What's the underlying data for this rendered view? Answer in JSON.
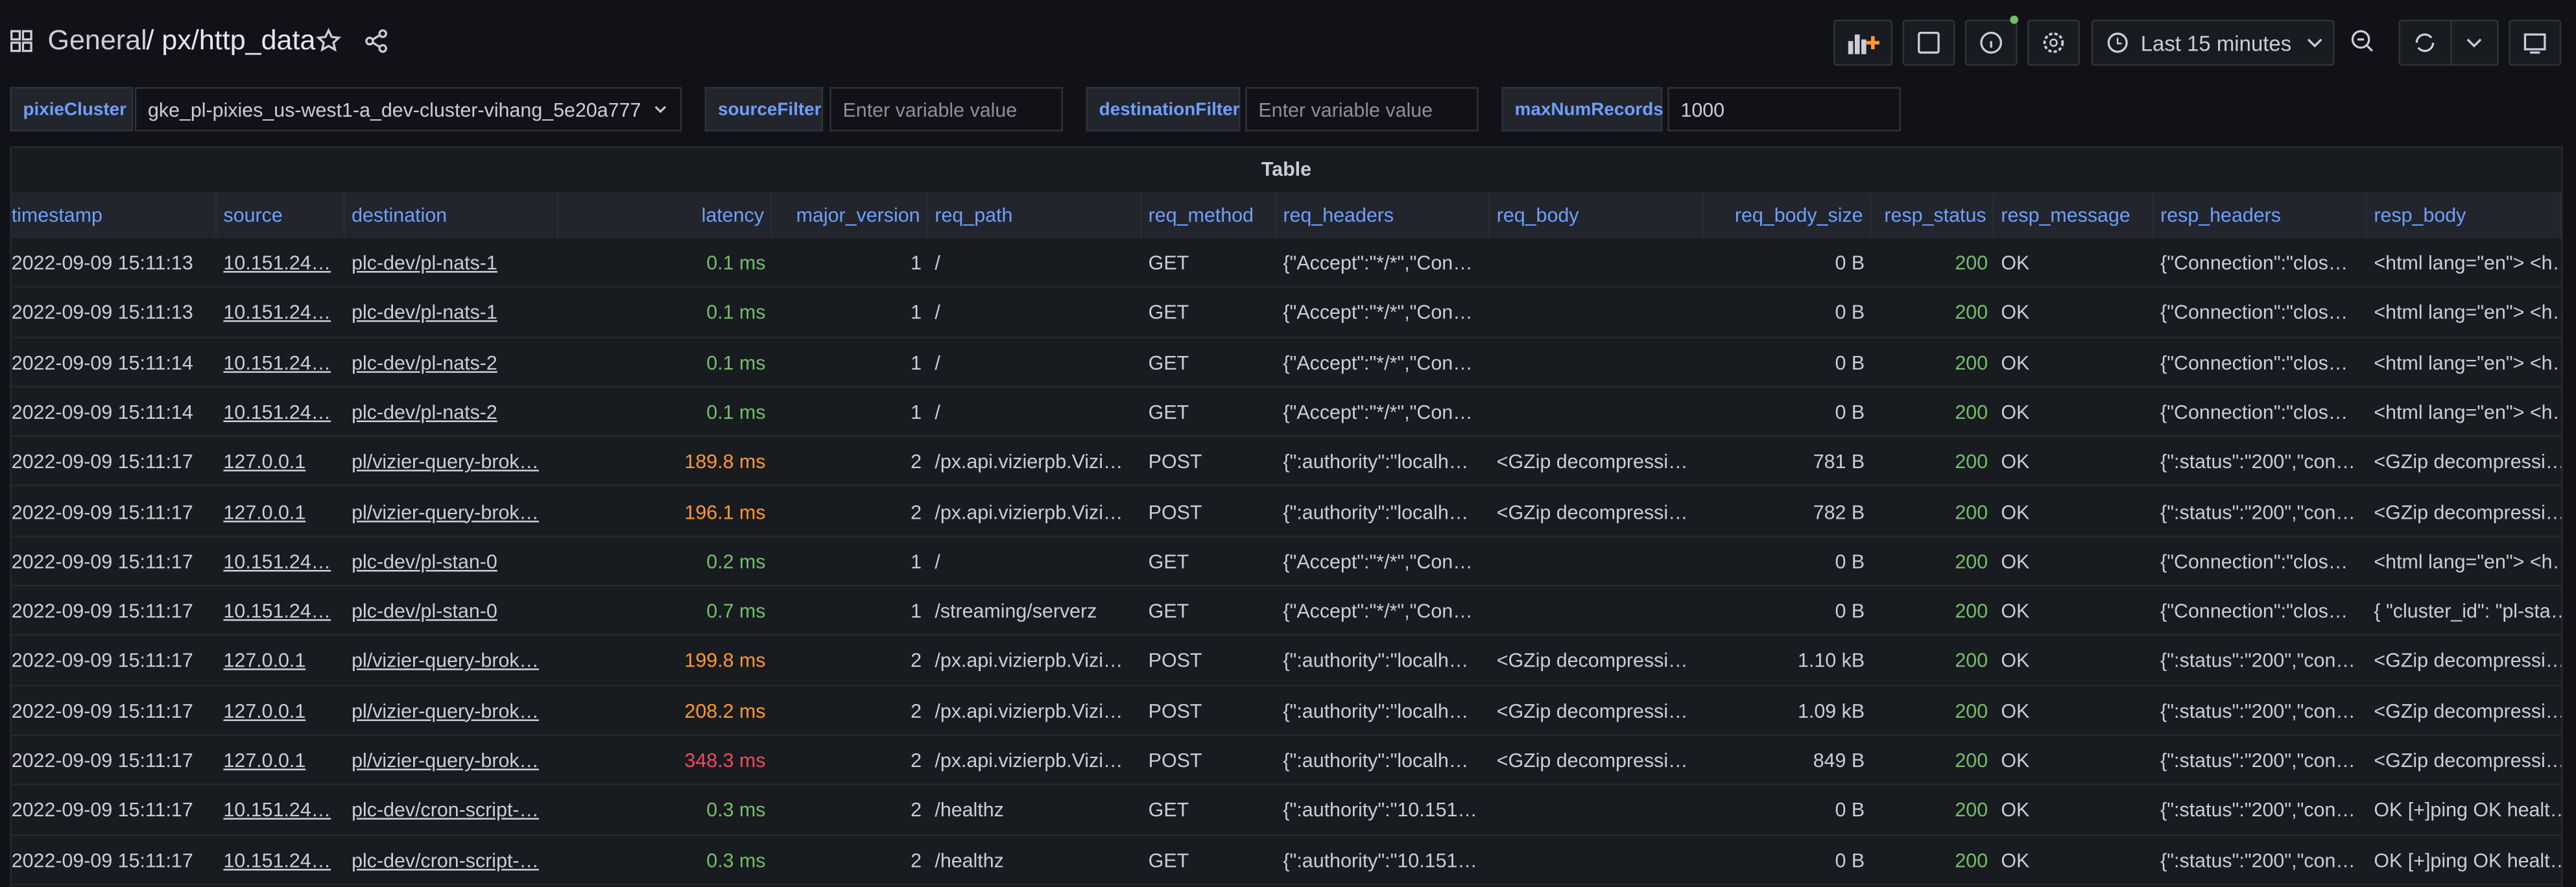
{
  "header": {
    "breadcrumb": "General",
    "title": "/ px/http_data",
    "time_range": "Last 15 minutes"
  },
  "variables": [
    {
      "label": "pixieCluster",
      "value": "gke_pl-pixies_us-west1-a_dev-cluster-vihang_5e20a777"
    },
    {
      "label": "sourceFilter",
      "placeholder": "Enter variable value"
    },
    {
      "label": "destinationFilter",
      "placeholder": "Enter variable value"
    },
    {
      "label": "maxNumRecords",
      "value": "1000"
    }
  ],
  "table": {
    "title": "Table",
    "columns": [
      "timestamp",
      "source",
      "destination",
      "latency",
      "major_version",
      "req_path",
      "req_method",
      "req_headers",
      "req_body",
      "req_body_size",
      "resp_status",
      "resp_message",
      "resp_headers",
      "resp_body"
    ],
    "latency_colors": [
      "#73bf69",
      "#73bf69",
      "#73bf69",
      "#73bf69",
      "#ff9830",
      "#ff9830",
      "#73bf69",
      "#73bf69",
      "#ff9830",
      "#ff9830",
      "#f2495c",
      "#73bf69",
      "#73bf69"
    ],
    "status_color": "#73bf69",
    "rows": [
      [
        "2022-09-09 15:11:13",
        "10.151.24…",
        "plc-dev/pl-nats-1",
        "0.1 ms",
        "1",
        "/",
        "GET",
        "{\"Accept\":\"*/*\",\"Con…",
        null,
        "0 B",
        "200",
        "OK",
        "{\"Connection\":\"clos…",
        "<html lang=\"en\"> <h…"
      ],
      [
        "2022-09-09 15:11:13",
        "10.151.24…",
        "plc-dev/pl-nats-1",
        "0.1 ms",
        "1",
        "/",
        "GET",
        "{\"Accept\":\"*/*\",\"Con…",
        null,
        "0 B",
        "200",
        "OK",
        "{\"Connection\":\"clos…",
        "<html lang=\"en\"> <h…"
      ],
      [
        "2022-09-09 15:11:14",
        "10.151.24…",
        "plc-dev/pl-nats-2",
        "0.1 ms",
        "1",
        "/",
        "GET",
        "{\"Accept\":\"*/*\",\"Con…",
        null,
        "0 B",
        "200",
        "OK",
        "{\"Connection\":\"clos…",
        "<html lang=\"en\"> <h…"
      ],
      [
        "2022-09-09 15:11:14",
        "10.151.24…",
        "plc-dev/pl-nats-2",
        "0.1 ms",
        "1",
        "/",
        "GET",
        "{\"Accept\":\"*/*\",\"Con…",
        null,
        "0 B",
        "200",
        "OK",
        "{\"Connection\":\"clos…",
        "<html lang=\"en\"> <h…"
      ],
      [
        "2022-09-09 15:11:17",
        "127.0.0.1",
        "pl/vizier-query-brok…",
        "189.8 ms",
        "2",
        "/px.api.vizierpb.Vizi…",
        "POST",
        "{\":authority\":\"localh…",
        "<GZip decompressi…",
        "781 B",
        "200",
        "OK",
        "{\":status\":\"200\",\"con…",
        "<GZip decompressi…"
      ],
      [
        "2022-09-09 15:11:17",
        "127.0.0.1",
        "pl/vizier-query-brok…",
        "196.1 ms",
        "2",
        "/px.api.vizierpb.Vizi…",
        "POST",
        "{\":authority\":\"localh…",
        "<GZip decompressi…",
        "782 B",
        "200",
        "OK",
        "{\":status\":\"200\",\"con…",
        "<GZip decompressi…"
      ],
      [
        "2022-09-09 15:11:17",
        "10.151.24…",
        "plc-dev/pl-stan-0",
        "0.2 ms",
        "1",
        "/",
        "GET",
        "{\"Accept\":\"*/*\",\"Con…",
        null,
        "0 B",
        "200",
        "OK",
        "{\"Connection\":\"clos…",
        "<html lang=\"en\"> <h…"
      ],
      [
        "2022-09-09 15:11:17",
        "10.151.24…",
        "plc-dev/pl-stan-0",
        "0.7 ms",
        "1",
        "/streaming/serverz",
        "GET",
        "{\"Accept\":\"*/*\",\"Con…",
        null,
        "0 B",
        "200",
        "OK",
        "{\"Connection\":\"clos…",
        "{ \"cluster_id\": \"pl-sta…"
      ],
      [
        "2022-09-09 15:11:17",
        "127.0.0.1",
        "pl/vizier-query-brok…",
        "199.8 ms",
        "2",
        "/px.api.vizierpb.Vizi…",
        "POST",
        "{\":authority\":\"localh…",
        "<GZip decompressi…",
        "1.10 kB",
        "200",
        "OK",
        "{\":status\":\"200\",\"con…",
        "<GZip decompressi…"
      ],
      [
        "2022-09-09 15:11:17",
        "127.0.0.1",
        "pl/vizier-query-brok…",
        "208.2 ms",
        "2",
        "/px.api.vizierpb.Vizi…",
        "POST",
        "{\":authority\":\"localh…",
        "<GZip decompressi…",
        "1.09 kB",
        "200",
        "OK",
        "{\":status\":\"200\",\"con…",
        "<GZip decompressi…"
      ],
      [
        "2022-09-09 15:11:17",
        "127.0.0.1",
        "pl/vizier-query-brok…",
        "348.3 ms",
        "2",
        "/px.api.vizierpb.Vizi…",
        "POST",
        "{\":authority\":\"localh…",
        "<GZip decompressi…",
        "849 B",
        "200",
        "OK",
        "{\":status\":\"200\",\"con…",
        "<GZip decompressi…"
      ],
      [
        "2022-09-09 15:11:17",
        "10.151.24…",
        "plc-dev/cron-script-…",
        "0.3 ms",
        "2",
        "/healthz",
        "GET",
        "{\":authority\":\"10.151…",
        null,
        "0 B",
        "200",
        "OK",
        "{\":status\":\"200\",\"con…",
        "OK [+]ping OK healt…"
      ],
      [
        "2022-09-09 15:11:17",
        "10.151.24…",
        "plc-dev/cron-script-…",
        "0.3 ms",
        "2",
        "/healthz",
        "GET",
        "{\":authority\":\"10.151…",
        null,
        "0 B",
        "200",
        "OK",
        "{\":status\":\"200\",\"con…",
        "OK [+]ping OK healt…"
      ]
    ]
  }
}
